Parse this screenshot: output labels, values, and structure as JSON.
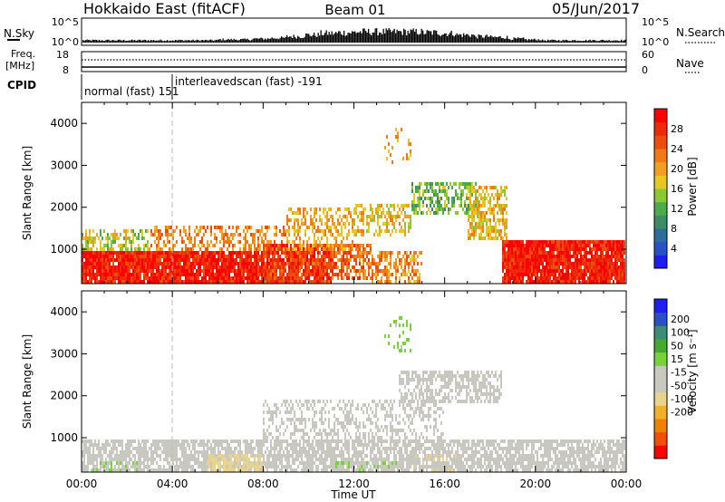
{
  "header": {
    "station": "Hokkaido East (fitACF)",
    "beam": "Beam 01",
    "date": "05/Jun/2017"
  },
  "sky_panel": {
    "left_label": "N.Sky",
    "left_ticks": [
      "10^5",
      "10^0"
    ],
    "right_label": "N.Search",
    "right_ticks": [
      "10^5",
      "10^0"
    ],
    "sky_profile": [
      3,
      3,
      3,
      3,
      3,
      3,
      3,
      3,
      4,
      4,
      5,
      6,
      8,
      10,
      12,
      13,
      14,
      14,
      14,
      14,
      13,
      12,
      10,
      8,
      7,
      5,
      4,
      3,
      3,
      3,
      3,
      3
    ]
  },
  "freq_panel": {
    "left_label": "Freq.",
    "left_unit": "[MHz]",
    "left_ticks": [
      "18",
      "8"
    ],
    "right_label": "Nave",
    "right_ticks": [
      "60",
      "0"
    ]
  },
  "cpid": {
    "label": "CPID",
    "segments": [
      {
        "text": "normal (fast) 151",
        "start_hour": 0
      },
      {
        "text": "interleavedscan (fast) -191",
        "start_hour": 4.0
      }
    ]
  },
  "chart_data": [
    {
      "type": "heatmap",
      "quantity": "Power",
      "ylabel": "Slant Range [km]",
      "ylim": [
        180,
        4500
      ],
      "yticks": [
        "1000",
        "2000",
        "3000",
        "4000"
      ],
      "xlim": [
        0,
        24
      ],
      "colorbar": {
        "label": "Power [dB]",
        "range": [
          0,
          32
        ],
        "ticks": [
          "4",
          "8",
          "12",
          "16",
          "20",
          "24",
          "28"
        ],
        "colors": [
          "#1e1ef0",
          "#2850c8",
          "#2a6e9c",
          "#3c8c64",
          "#4cac4c",
          "#8cc832",
          "#e6c81e",
          "#f0a01e",
          "#f07a14",
          "#ee4e0c",
          "#ec2a08",
          "#ff0000"
        ]
      },
      "blobs": [
        {
          "h0": 0.0,
          "h1": 4.0,
          "r0": 180,
          "r1": 950,
          "v": 29,
          "d": 0.95
        },
        {
          "h0": 4.0,
          "h1": 8.0,
          "r0": 180,
          "r1": 1000,
          "v": 29,
          "d": 0.95
        },
        {
          "h0": 8.0,
          "h1": 11.0,
          "r0": 180,
          "r1": 1100,
          "v": 27,
          "d": 0.9
        },
        {
          "h0": 11.0,
          "h1": 12.8,
          "r0": 250,
          "r1": 1100,
          "v": 24,
          "d": 0.7
        },
        {
          "h0": 12.8,
          "h1": 15.0,
          "r0": 200,
          "r1": 1000,
          "v": 22,
          "d": 0.55
        },
        {
          "h0": 0.0,
          "h1": 3.0,
          "r0": 1000,
          "r1": 1450,
          "v": 16,
          "d": 0.45
        },
        {
          "h0": 3.0,
          "h1": 9.0,
          "r0": 1000,
          "r1": 1600,
          "v": 22,
          "d": 0.45
        },
        {
          "h0": 9.0,
          "h1": 12.0,
          "r0": 1000,
          "r1": 2000,
          "v": 20,
          "d": 0.45
        },
        {
          "h0": 12.0,
          "h1": 14.5,
          "r0": 1300,
          "r1": 2100,
          "v": 18,
          "d": 0.5
        },
        {
          "h0": 14.5,
          "h1": 17.5,
          "r0": 1800,
          "r1": 2600,
          "v": 13,
          "d": 0.55
        },
        {
          "h0": 17.0,
          "h1": 18.8,
          "r0": 1200,
          "r1": 2500,
          "v": 19,
          "d": 0.6
        },
        {
          "h0": 18.5,
          "h1": 24.0,
          "r0": 180,
          "r1": 1250,
          "v": 29,
          "d": 0.95
        },
        {
          "h0": 13.3,
          "h1": 14.5,
          "r0": 3000,
          "r1": 3900,
          "v": 20,
          "d": 0.15
        }
      ]
    },
    {
      "type": "heatmap",
      "quantity": "Velocity",
      "ylabel": "Slant Range [km]",
      "ylim": [
        180,
        4500
      ],
      "yticks": [
        "1000",
        "2000",
        "3000",
        "4000"
      ],
      "xlim": [
        0,
        24
      ],
      "xticks": [
        "00:00",
        "04:00",
        "08:00",
        "12:00",
        "16:00",
        "20:00",
        "00:00"
      ],
      "xlabel": "Time UT",
      "colorbar": {
        "label": "Velocity [m s⁻¹]",
        "range": [
          -250,
          250
        ],
        "ticks": [
          "200",
          "100",
          "50",
          "15",
          "-15",
          "-50",
          "-100",
          "-200"
        ],
        "colors": [
          "#ff0000",
          "#f05000",
          "#f08000",
          "#f0b028",
          "#e8d48c",
          "#c8c8c0",
          "#c8c8c0",
          "#78d23c",
          "#46aa32",
          "#3c8c78",
          "#2850c8",
          "#1e1ef0"
        ]
      },
      "blobs": [
        {
          "h0": 0.0,
          "h1": 24.0,
          "r0": 180,
          "r1": 1000,
          "v": 0,
          "d": 0.75
        },
        {
          "h0": 8.0,
          "h1": 16.0,
          "r0": 1000,
          "r1": 1900,
          "v": 0,
          "d": 0.4
        },
        {
          "h0": 14.0,
          "h1": 18.5,
          "r0": 1800,
          "r1": 2600,
          "v": 0,
          "d": 0.55
        },
        {
          "h0": 5.5,
          "h1": 8.0,
          "r0": 180,
          "r1": 600,
          "v": -60,
          "d": 0.6
        },
        {
          "h0": 0.5,
          "h1": 2.5,
          "r0": 180,
          "r1": 400,
          "v": 40,
          "d": 0.4
        },
        {
          "h0": 11.0,
          "h1": 14.0,
          "r0": 180,
          "r1": 400,
          "v": 40,
          "d": 0.5
        },
        {
          "h0": 14.5,
          "h1": 16.5,
          "r0": 200,
          "r1": 600,
          "v": -40,
          "d": 0.3
        },
        {
          "h0": 13.3,
          "h1": 14.5,
          "r0": 3000,
          "r1": 3900,
          "v": 60,
          "d": 0.15
        }
      ]
    }
  ]
}
